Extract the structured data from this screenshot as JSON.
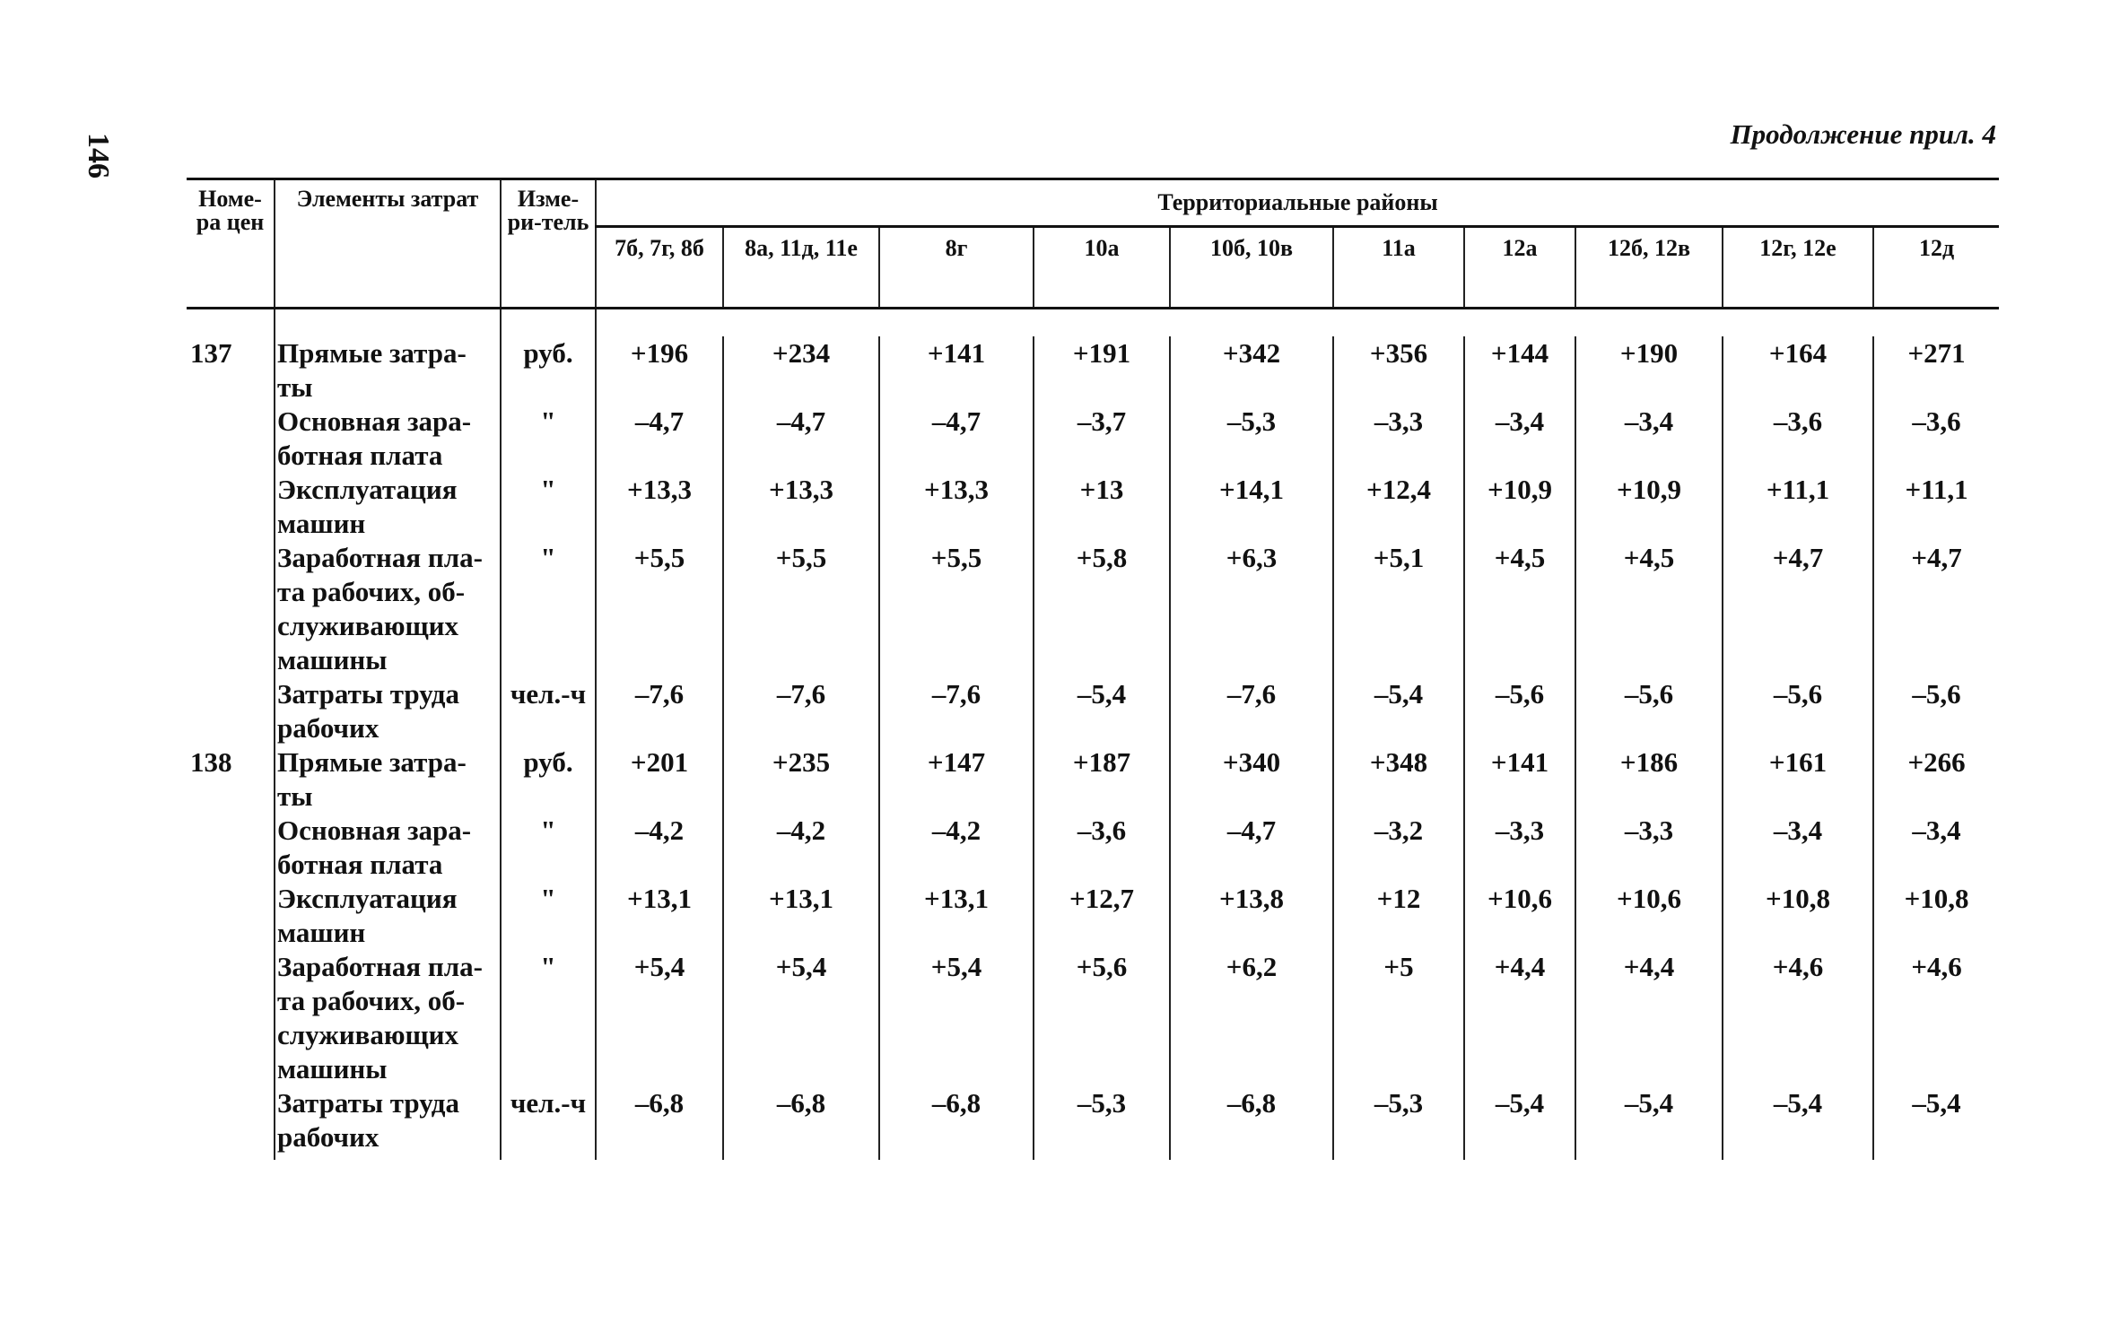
{
  "page": {
    "number": "146",
    "continuation": "Продолжение прил. 4"
  },
  "table": {
    "headers": {
      "number": "Номе-ра цен",
      "elements": "Элементы затрат",
      "unit": "Изме-ри-тель",
      "regions": "Территориальные районы",
      "region_columns": [
        "7б, 7г, 8б",
        "8а, 11д, 11е",
        "8г",
        "10а",
        "10б, 10в",
        "11а",
        "12а",
        "12б, 12в",
        "12г, 12е",
        "12д"
      ]
    },
    "rows": [
      {
        "num": "137",
        "element": "Прямые затра-ты",
        "unit": "руб.",
        "values": [
          "+196",
          "+234",
          "+141",
          "+191",
          "+342",
          "+356",
          "+144",
          "+190",
          "+164",
          "+271"
        ]
      },
      {
        "num": "",
        "element": "Основная зара-ботная плата",
        "unit": "\"",
        "values": [
          "–4,7",
          "–4,7",
          "–4,7",
          "–3,7",
          "–5,3",
          "–3,3",
          "–3,4",
          "–3,4",
          "–3,6",
          "–3,6"
        ]
      },
      {
        "num": "",
        "element": "Эксплуатация машин",
        "unit": "\"",
        "values": [
          "+13,3",
          "+13,3",
          "+13,3",
          "+13",
          "+14,1",
          "+12,4",
          "+10,9",
          "+10,9",
          "+11,1",
          "+11,1"
        ]
      },
      {
        "num": "",
        "element": "Заработная пла-та рабочих, об-служивающих машины",
        "unit": "\"",
        "values": [
          "+5,5",
          "+5,5",
          "+5,5",
          "+5,8",
          "+6,3",
          "+5,1",
          "+4,5",
          "+4,5",
          "+4,7",
          "+4,7"
        ]
      },
      {
        "num": "",
        "element": "Затраты труда рабочих",
        "unit": "чел.-ч",
        "values": [
          "–7,6",
          "–7,6",
          "–7,6",
          "–5,4",
          "–7,6",
          "–5,4",
          "–5,6",
          "–5,6",
          "–5,6",
          "–5,6"
        ]
      },
      {
        "num": "138",
        "element": "Прямые затра-ты",
        "unit": "руб.",
        "values": [
          "+201",
          "+235",
          "+147",
          "+187",
          "+340",
          "+348",
          "+141",
          "+186",
          "+161",
          "+266"
        ]
      },
      {
        "num": "",
        "element": "Основная зара-ботная плата",
        "unit": "\"",
        "values": [
          "–4,2",
          "–4,2",
          "–4,2",
          "–3,6",
          "–4,7",
          "–3,2",
          "–3,3",
          "–3,3",
          "–3,4",
          "–3,4"
        ]
      },
      {
        "num": "",
        "element": "Эксплуатация машин",
        "unit": "\"",
        "values": [
          "+13,1",
          "+13,1",
          "+13,1",
          "+12,7",
          "+13,8",
          "+12",
          "+10,6",
          "+10,6",
          "+10,8",
          "+10,8"
        ]
      },
      {
        "num": "",
        "element": "Заработная пла-та рабочих, об-служивающих машины",
        "unit": "\"",
        "values": [
          "+5,4",
          "+5,4",
          "+5,4",
          "+5,6",
          "+6,2",
          "+5",
          "+4,4",
          "+4,4",
          "+4,6",
          "+4,6"
        ]
      },
      {
        "num": "",
        "element": "Затраты труда рабочих",
        "unit": "чел.-ч",
        "values": [
          "–6,8",
          "–6,8",
          "–6,8",
          "–5,3",
          "–6,8",
          "–5,3",
          "–5,4",
          "–5,4",
          "–5,4",
          "–5,4"
        ]
      }
    ]
  }
}
